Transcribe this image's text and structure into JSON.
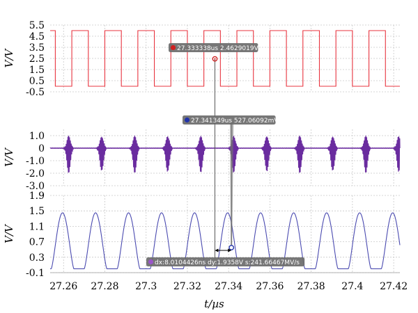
{
  "chart_data": [
    {
      "type": "line",
      "ylabel": "V/V",
      "ylim": [
        -0.5,
        5.5
      ],
      "yticks": [
        "5.5",
        "4.5",
        "3.5",
        "2.5",
        "1.5",
        "0.5",
        "-0.5"
      ],
      "series": [
        {
          "color": "#e8343f",
          "shape": "square-wave",
          "low": 0.0,
          "high": 5.0,
          "period_us": 0.016,
          "first_rise_us": 27.264
        }
      ],
      "marker": {
        "label": "27.333338us 2.4629019V",
        "x": 27.333338,
        "y": 2.4629019
      }
    },
    {
      "type": "line",
      "ylabel": "V/V",
      "ylim": [
        -3.0,
        1.5
      ],
      "yticks": [
        "1.0",
        "0",
        "-1.0",
        "-2.0",
        "-3.0"
      ],
      "series": [
        {
          "color": "#6a2c9f",
          "shape": "burst-oscillation",
          "peak": 1.0,
          "trough": -2.0,
          "period_us": 0.016,
          "first_burst_us": 27.2625
        }
      ],
      "marker": {
        "label": "27.341349us 527.06092mV",
        "x": 27.341349,
        "y": 0.52706092
      }
    },
    {
      "type": "line",
      "ylabel": "V/V",
      "ylim": [
        -0.1,
        1.9
      ],
      "yticks": [
        "1.9",
        "1.5",
        "1.1",
        "0.7",
        "0.3",
        "-0.1"
      ],
      "series": [
        {
          "color": "#4a4ab0",
          "shape": "rounded-pulse",
          "low": 0.0,
          "high": 1.45,
          "period_us": 0.016,
          "first_peak_us": 27.2595
        }
      ],
      "marker": {
        "label": "dx:8.0104426ns dy:1.9358V s:241.66467MV/s"
      }
    }
  ],
  "x_axis": {
    "label": "t/µs",
    "range": [
      27.2535,
      27.423
    ],
    "ticks": [
      {
        "value": 27.26,
        "label": "27.26"
      },
      {
        "value": 27.28,
        "label": "27.28"
      },
      {
        "value": 27.3,
        "label": "27.3"
      },
      {
        "value": 27.32,
        "label": "27.32"
      },
      {
        "value": 27.34,
        "label": "27.34"
      },
      {
        "value": 27.36,
        "label": "27.36"
      },
      {
        "value": 27.38,
        "label": "27.38"
      },
      {
        "value": 27.4,
        "label": "27.4"
      },
      {
        "value": 27.42,
        "label": "27.42"
      }
    ]
  },
  "colors": {
    "marker_badge": "#6b6b6b",
    "marker_a": "#d02020",
    "marker_b": "#2233aa",
    "marker_delta": "#9a55c8",
    "grid": "#c8c8c8"
  }
}
